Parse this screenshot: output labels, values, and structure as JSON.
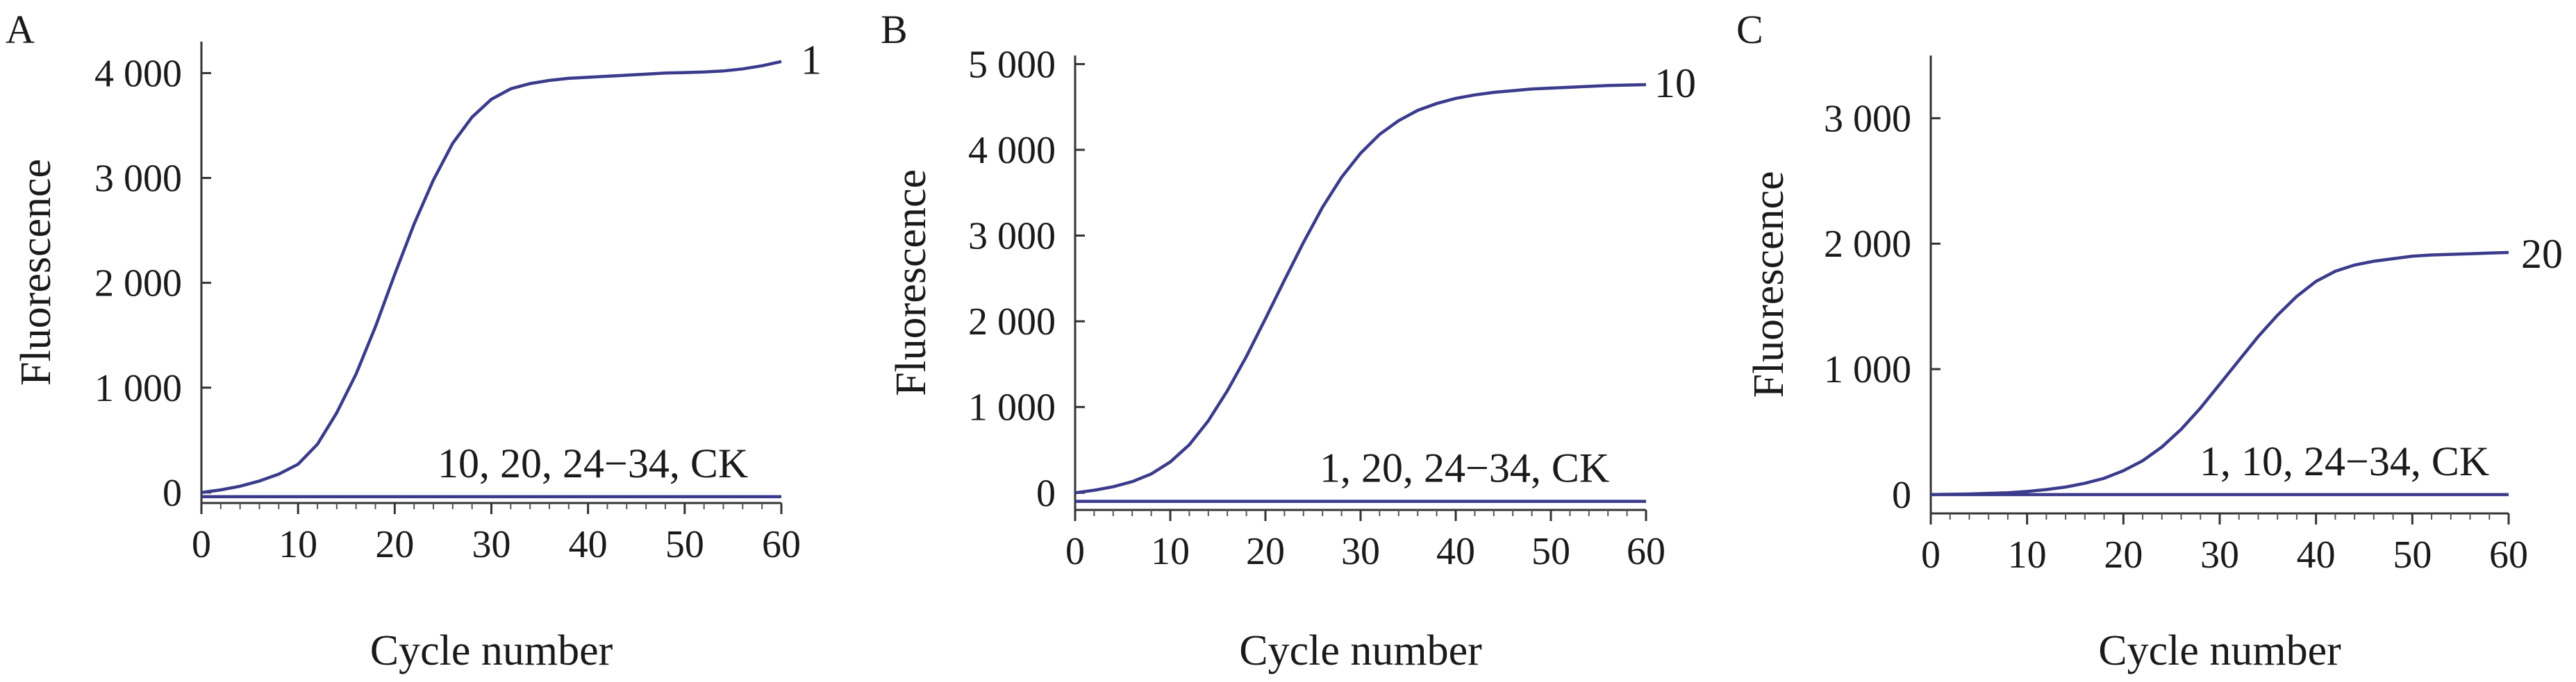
{
  "chart_data": [
    {
      "panel": "A",
      "type": "line",
      "xlabel": "Cycle number",
      "ylabel": "Fluorescence",
      "xlim": [
        0,
        60
      ],
      "ylim": [
        -100,
        4300
      ],
      "xticks": [
        "0",
        "10",
        "20",
        "30",
        "40",
        "50",
        "60"
      ],
      "yticks": [
        {
          "value": 0,
          "label": "0"
        },
        {
          "value": 1000,
          "label": "1 000"
        },
        {
          "value": 2000,
          "label": "2 000"
        },
        {
          "value": 3000,
          "label": "3 000"
        },
        {
          "value": 4000,
          "label": "4 000"
        }
      ],
      "series": [
        {
          "name": "1",
          "x": [
            0,
            2,
            4,
            6,
            8,
            10,
            12,
            14,
            16,
            18,
            20,
            22,
            24,
            26,
            28,
            30,
            32,
            34,
            36,
            38,
            40,
            42,
            44,
            46,
            48,
            50,
            52,
            54,
            56,
            58,
            60
          ],
          "y": [
            0,
            25,
            60,
            110,
            175,
            270,
            460,
            760,
            1130,
            1580,
            2080,
            2560,
            2980,
            3330,
            3580,
            3750,
            3850,
            3900,
            3930,
            3950,
            3960,
            3970,
            3980,
            3990,
            4000,
            4005,
            4010,
            4020,
            4040,
            4070,
            4110
          ]
        },
        {
          "name": "10, 20, 24−34, CK",
          "x": [
            0,
            60
          ],
          "y": [
            -40,
            -40
          ]
        }
      ]
    },
    {
      "panel": "B",
      "type": "line",
      "xlabel": "Cycle number",
      "ylabel": "Fluorescence",
      "xlim": [
        0,
        60
      ],
      "ylim": [
        -200,
        5100
      ],
      "xticks": [
        "0",
        "10",
        "20",
        "30",
        "40",
        "50",
        "60"
      ],
      "yticks": [
        {
          "value": 0,
          "label": "0"
        },
        {
          "value": 1000,
          "label": "1 000"
        },
        {
          "value": 2000,
          "label": "2 000"
        },
        {
          "value": 3000,
          "label": "3 000"
        },
        {
          "value": 4000,
          "label": "4 000"
        },
        {
          "value": 5000,
          "label": "5 000"
        }
      ],
      "series": [
        {
          "name": "10",
          "x": [
            0,
            2,
            4,
            6,
            8,
            10,
            12,
            14,
            16,
            18,
            20,
            22,
            24,
            26,
            28,
            30,
            32,
            34,
            36,
            38,
            40,
            42,
            44,
            46,
            48,
            50,
            52,
            54,
            56,
            58,
            60
          ],
          "y": [
            0,
            30,
            70,
            130,
            220,
            360,
            560,
            840,
            1190,
            1590,
            2030,
            2480,
            2920,
            3330,
            3680,
            3960,
            4180,
            4340,
            4460,
            4540,
            4600,
            4640,
            4670,
            4690,
            4710,
            4720,
            4730,
            4740,
            4750,
            4755,
            4760
          ]
        },
        {
          "name": "1, 20, 24−34, CK",
          "x": [
            0,
            60
          ],
          "y": [
            -100,
            -100
          ]
        }
      ]
    },
    {
      "panel": "C",
      "type": "line",
      "xlabel": "Cycle number",
      "ylabel": "Fluorescence",
      "xlim": [
        0,
        60
      ],
      "ylim": [
        -150,
        3500
      ],
      "xticks": [
        "0",
        "10",
        "20",
        "30",
        "40",
        "50",
        "60"
      ],
      "yticks": [
        {
          "value": 0,
          "label": "0"
        },
        {
          "value": 1000,
          "label": "1 000"
        },
        {
          "value": 2000,
          "label": "2 000"
        },
        {
          "value": 3000,
          "label": "3 000"
        }
      ],
      "series": [
        {
          "name": "20",
          "x": [
            0,
            4,
            8,
            10,
            12,
            14,
            16,
            18,
            20,
            22,
            24,
            26,
            28,
            30,
            32,
            34,
            36,
            38,
            40,
            42,
            44,
            46,
            48,
            50,
            52,
            54,
            56,
            58,
            60
          ],
          "y": [
            0,
            5,
            15,
            25,
            40,
            60,
            90,
            130,
            190,
            270,
            380,
            520,
            690,
            880,
            1070,
            1260,
            1430,
            1580,
            1700,
            1780,
            1830,
            1860,
            1880,
            1900,
            1910,
            1915,
            1920,
            1925,
            1930
          ]
        },
        {
          "name": "1, 10, 24−34, CK",
          "x": [
            0,
            60
          ],
          "y": [
            0,
            0
          ]
        }
      ]
    }
  ]
}
